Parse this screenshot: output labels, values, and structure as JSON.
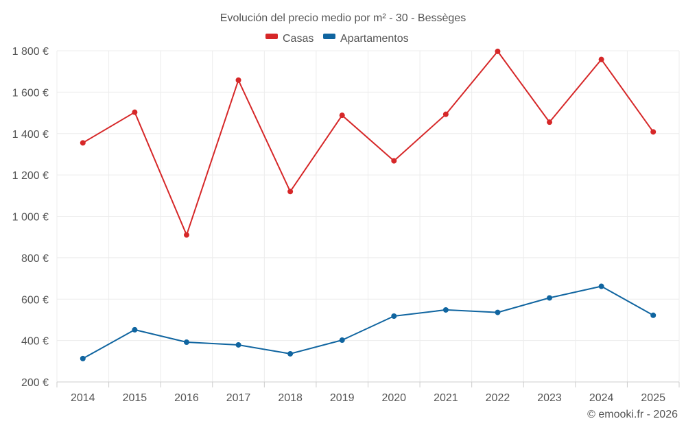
{
  "chart_data": {
    "type": "line",
    "title": "Evolución del precio medio por m² - 30 - Bessèges",
    "categories": [
      "2014",
      "2015",
      "2016",
      "2017",
      "2018",
      "2019",
      "2020",
      "2021",
      "2022",
      "2023",
      "2024",
      "2025"
    ],
    "series": [
      {
        "name": "Casas",
        "color": "#d62728",
        "values": [
          1355,
          1503,
          910,
          1658,
          1120,
          1488,
          1268,
          1493,
          1797,
          1455,
          1758,
          1408
        ]
      },
      {
        "name": "Apartamentos",
        "color": "#1065a0",
        "values": [
          313,
          452,
          392,
          379,
          336,
          402,
          518,
          548,
          536,
          606,
          662,
          522
        ]
      }
    ],
    "ylim": [
      200,
      1800
    ],
    "yticks": [
      200,
      400,
      600,
      800,
      1000,
      1200,
      1400,
      1600,
      1800
    ],
    "ytick_labels": [
      "200 €",
      "400 €",
      "600 €",
      "800 €",
      "1 000 €",
      "1 200 €",
      "1 400 €",
      "1 600 €",
      "1 800 €"
    ],
    "xlabel": "",
    "ylabel": "",
    "grid": true,
    "legend": "top-center",
    "credit": "© emooki.fr - 2026"
  }
}
